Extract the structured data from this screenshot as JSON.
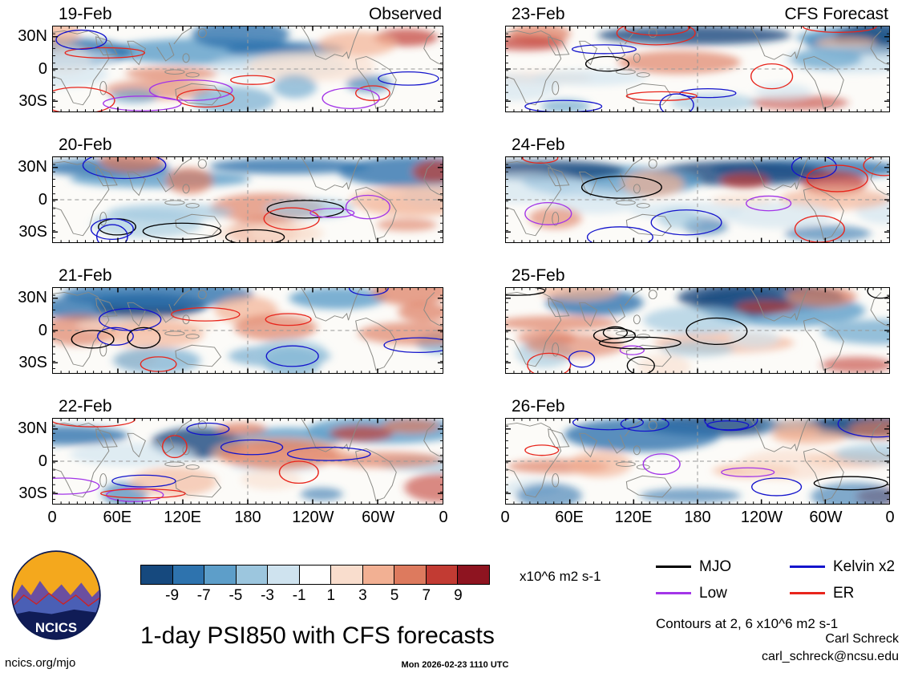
{
  "figure": {
    "title": "1-day PSI850 with CFS forecasts",
    "contour_note": "Contours at 2, 6 x10^6 m2 s-1",
    "credit_name": "Carl Schreck",
    "credit_email": "carl_schreck@ncsu.edu",
    "footer_left": "ncics.org/mjo",
    "footer_center": "Mon 2026-02-23 1110 UTC",
    "logo_text": "NCICS"
  },
  "columns": [
    {
      "header": "Observed",
      "dates": [
        "19-Feb",
        "20-Feb",
        "21-Feb",
        "22-Feb"
      ]
    },
    {
      "header": "CFS Forecast",
      "dates": [
        "23-Feb",
        "24-Feb",
        "25-Feb",
        "26-Feb"
      ]
    }
  ],
  "axes": {
    "y_ticks": [
      "30N",
      "0",
      "30S"
    ],
    "x_ticks": [
      "0",
      "60E",
      "120E",
      "180",
      "120W",
      "60W",
      "0"
    ]
  },
  "colorbar": {
    "tick_labels": [
      "-9",
      "-7",
      "-5",
      "-3",
      "-1",
      "1",
      "3",
      "5",
      "7",
      "9"
    ],
    "unit": "x10^6 m2 s-1",
    "colors": [
      "#16497e",
      "#2e73ae",
      "#5d9ec9",
      "#9cc6de",
      "#cfe3ef",
      "#ffffff",
      "#f9ddcd",
      "#f2b093",
      "#dd7a5e",
      "#c23b33",
      "#8e1420"
    ]
  },
  "legend": [
    {
      "label": "MJO",
      "color": "#000000"
    },
    {
      "label": "Low",
      "color": "#a335e8"
    },
    {
      "label": "Kelvin x2",
      "color": "#1414cc"
    },
    {
      "label": "ER",
      "color": "#e8251c"
    }
  ],
  "chart_data": {
    "type": "heatmap",
    "title": "1-day PSI850 with CFS forecasts",
    "description": "Eight global-longitude maps (0-360, ~40N-40S) of 850-hPa streamfunction anomalies with shaded anomalies and wave contours; left column observed, right column CFS forecast",
    "panels": [
      {
        "date": "19-Feb",
        "column": "Observed"
      },
      {
        "date": "20-Feb",
        "column": "Observed"
      },
      {
        "date": "21-Feb",
        "column": "Observed"
      },
      {
        "date": "22-Feb",
        "column": "Observed"
      },
      {
        "date": "23-Feb",
        "column": "CFS Forecast"
      },
      {
        "date": "24-Feb",
        "column": "CFS Forecast"
      },
      {
        "date": "25-Feb",
        "column": "CFS Forecast"
      },
      {
        "date": "26-Feb",
        "column": "CFS Forecast"
      }
    ],
    "x_tick_labels": [
      "0",
      "60E",
      "120E",
      "180",
      "120W",
      "60W",
      "0"
    ],
    "y_tick_labels": [
      "30N",
      "0",
      "30S"
    ],
    "shading_levels": [
      -9,
      -7,
      -5,
      -3,
      -1,
      1,
      3,
      5,
      7,
      9
    ],
    "shading_unit": "x10^6 m2 s-1",
    "contour_series": [
      "MJO",
      "Low",
      "Kelvin x2",
      "ER"
    ],
    "contour_levels_note": "Contours at 2, 6 x10^6 m2 s-1",
    "colormap": "blue-white-red diverging",
    "legend_position": "bottom-right",
    "grid": "dashed equator and dateline reference lines"
  }
}
